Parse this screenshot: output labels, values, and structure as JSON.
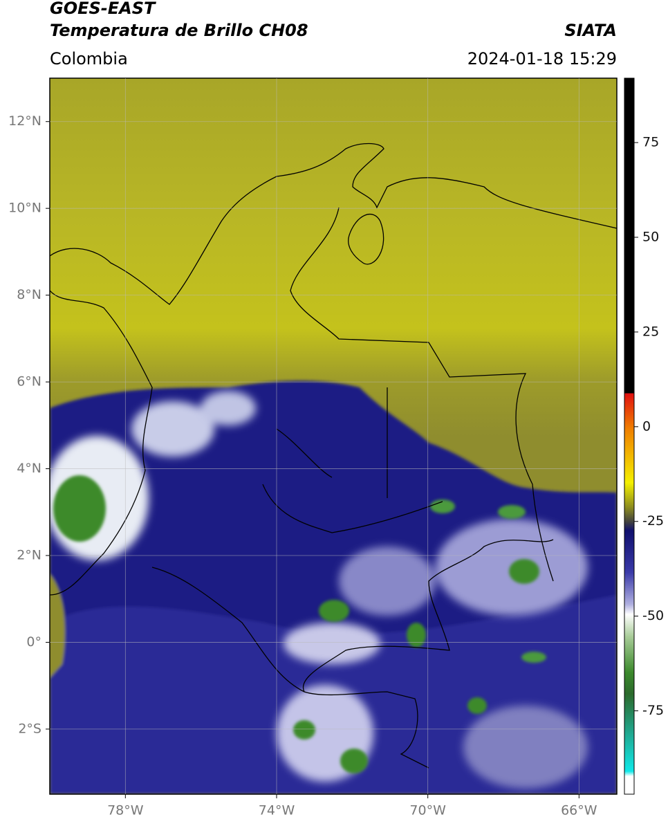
{
  "header": {
    "title": "GOES-EAST",
    "subtitle": "Temperatura de Brillo CH08",
    "source": "SIATA",
    "region": "Colombia",
    "timestamp": "2024-01-18 15:29"
  },
  "map": {
    "xlim": [
      -80,
      -65
    ],
    "ylim": [
      -3.5,
      13
    ],
    "xticks": [
      {
        "value": -78,
        "label": "78°W"
      },
      {
        "value": -74,
        "label": "74°W"
      },
      {
        "value": -70,
        "label": "70°W"
      },
      {
        "value": -66,
        "label": "66°W"
      }
    ],
    "yticks": [
      {
        "value": 12,
        "label": "12°N"
      },
      {
        "value": 10,
        "label": "10°N"
      },
      {
        "value": 8,
        "label": "8°N"
      },
      {
        "value": 6,
        "label": "6°N"
      },
      {
        "value": 4,
        "label": "4°N"
      },
      {
        "value": 2,
        "label": "2°N"
      },
      {
        "value": 0,
        "label": "0°"
      },
      {
        "value": -2,
        "label": "2°S"
      }
    ]
  },
  "colorbar": {
    "lim": [
      -97,
      92
    ],
    "ticks": [
      75,
      50,
      25,
      0,
      -25,
      -50,
      -75
    ]
  }
}
